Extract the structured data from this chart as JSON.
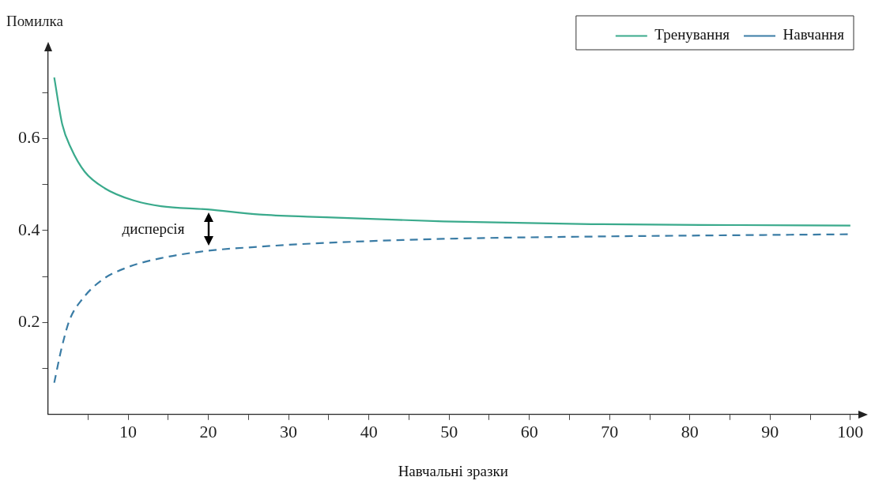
{
  "chart_data": {
    "type": "line",
    "xlabel": "Навчальні зразки",
    "ylabel": "Помилка",
    "xlim": [
      0,
      101
    ],
    "ylim": [
      0,
      0.79
    ],
    "xticks": [
      {
        "value": 5,
        "label": null
      },
      10,
      {
        "value": 15,
        "label": null
      },
      20,
      {
        "value": 25,
        "label": null
      },
      30,
      {
        "value": 35,
        "label": null
      },
      40,
      {
        "value": 45,
        "label": null
      },
      50,
      {
        "value": 55,
        "label": null
      },
      60,
      {
        "value": 65,
        "label": null
      },
      70,
      {
        "value": 75,
        "label": null
      },
      80,
      {
        "value": 85,
        "label": null
      },
      90,
      {
        "value": 95,
        "label": null
      },
      100
    ],
    "yticks": [
      {
        "value": 0.1,
        "label": null
      },
      0.2,
      {
        "value": 0.3,
        "label": null
      },
      0.4,
      {
        "value": 0.5,
        "label": null
      },
      0.6,
      {
        "value": 0.7,
        "label": null
      }
    ],
    "grid": false,
    "legend": "top right",
    "marker": "none",
    "series": [
      {
        "name": "Тренування",
        "color": "#3aaa8c",
        "line_style": "solid",
        "x": [
          0.8,
          1.8,
          2.9,
          4.6,
          7.1,
          10.6,
          14.1,
          19.9,
          26.4,
          33.1,
          49.3,
          67.7,
          86,
          100
        ],
        "values": [
          0.733,
          0.631,
          0.579,
          0.528,
          0.492,
          0.466,
          0.453,
          0.446,
          0.435,
          0.43,
          0.42,
          0.414,
          0.412,
          0.411
        ]
      },
      {
        "name": "Навчання",
        "color": "#3a7ca5",
        "line_style": "dashed",
        "x": [
          0.8,
          1.7,
          2.7,
          4.3,
          6.7,
          9.9,
          14.1,
          19.9,
          26.4,
          33.1,
          49.3,
          67.7,
          86,
          100
        ],
        "values": [
          0.069,
          0.143,
          0.205,
          0.251,
          0.292,
          0.32,
          0.34,
          0.356,
          0.365,
          0.372,
          0.382,
          0.387,
          0.39,
          0.392
        ]
      }
    ],
    "annotations": [
      "дисперсія"
    ]
  }
}
